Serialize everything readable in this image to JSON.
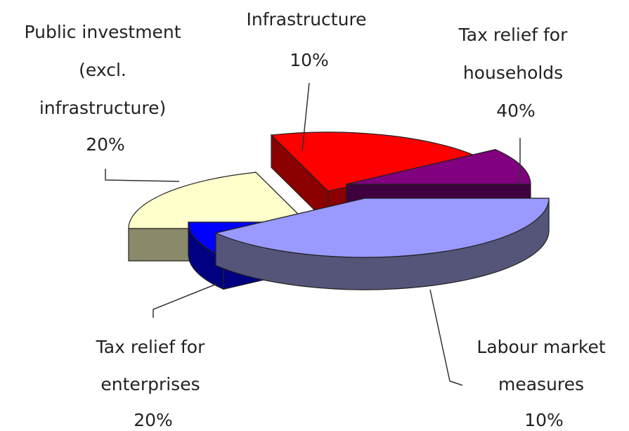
{
  "chart_data": {
    "type": "pie",
    "title": "",
    "style": "3d-exploded",
    "start_angle_deg": 0,
    "slices": [
      {
        "key": "households",
        "label_lines": [
          "Tax relief for",
          "households"
        ],
        "value": 40,
        "pct_text": "40%",
        "top": "#9999ff",
        "side": "#55557a"
      },
      {
        "key": "labour",
        "label_lines": [
          "Labour market",
          "measures"
        ],
        "value": 10,
        "pct_text": "10%",
        "top": "#0000ff",
        "side": "#000080"
      },
      {
        "key": "enterprises",
        "label_lines": [
          "Tax relief for",
          "enterprises"
        ],
        "value": 20,
        "pct_text": "20%",
        "top": "#ffffcc",
        "side": "#8a8a6a"
      },
      {
        "key": "public",
        "label_lines": [
          "Public investment",
          "(excl.",
          "infrastructure)"
        ],
        "value": 20,
        "pct_text": "20%",
        "top": "#ff0000",
        "side": "#8b0000"
      },
      {
        "key": "infra",
        "label_lines": [
          "Infrastructure"
        ],
        "value": 10,
        "pct_text": "10%",
        "top": "#800080",
        "side": "#3e003e"
      }
    ]
  }
}
